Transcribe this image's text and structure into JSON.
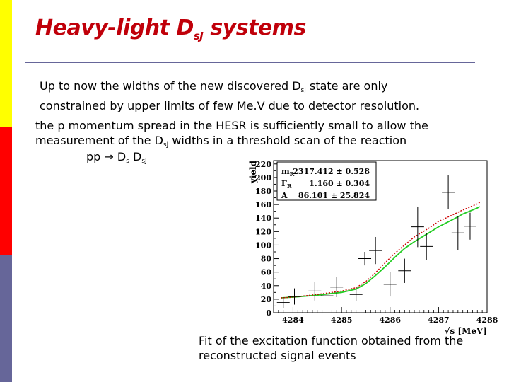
{
  "colors": {
    "title": "#c0000a",
    "sidebar_top": "#ffff00",
    "sidebar_middle": "#ff0000",
    "sidebar_bottom": "#666699",
    "divider": "#666699",
    "fit_green": "#22cc22",
    "fit_red_dotted": "#cc0000",
    "data_points": "#000000"
  },
  "slide": {
    "title": {
      "main": "Heavy-light D",
      "sub": "sJ",
      "rest": " systems"
    },
    "para1": {
      "a": "Up to now the widths of the new discovered D",
      "sub": "sJ",
      "b": " state are only",
      "line2": "constrained by upper limits of few Me.V due to detector resolution."
    },
    "para2": {
      "line1": "the p momentum spread in the HESR is sufficiently small to allow the",
      "a": "measurement of the D",
      "sub": "sJ",
      "b": " widths in a threshold scan of the reaction"
    },
    "reaction": {
      "a": "pp → D",
      "sub1": "s",
      "b": " D",
      "sub2": "sJ"
    },
    "caption": {
      "line1": "Fit of the excitation function obtained from the",
      "line2": "reconstructed signal events"
    }
  },
  "chart_data": {
    "type": "scatter",
    "xlabel": "√s [MeV]",
    "ylabel": "yield",
    "xlim": [
      4283.6,
      4288
    ],
    "ylim": [
      0,
      225
    ],
    "xticks": [
      "4284",
      "4285",
      "4286",
      "4287",
      "4288"
    ],
    "yticks": [
      "0",
      "20",
      "40",
      "60",
      "80",
      "100",
      "120",
      "140",
      "160",
      "180",
      "200",
      "220"
    ],
    "legend_box": {
      "position": "top-left",
      "rows": [
        {
          "param": "m",
          "sub": "R",
          "value": "2317.412 ± 0.528"
        },
        {
          "param": "Γ",
          "sub": "R",
          "value": "1.160 ± 0.304"
        },
        {
          "param": "A",
          "sub": "",
          "value": "86.101 ± 25.824"
        }
      ]
    },
    "points": [
      {
        "x": 4283.8,
        "y": 15,
        "err": 8
      },
      {
        "x": 4284.03,
        "y": 24,
        "err": 12
      },
      {
        "x": 4284.45,
        "y": 32,
        "err": 14
      },
      {
        "x": 4284.7,
        "y": 25,
        "err": 10
      },
      {
        "x": 4284.9,
        "y": 38,
        "err": 15
      },
      {
        "x": 4285.3,
        "y": 27,
        "err": 10
      },
      {
        "x": 4285.48,
        "y": 80,
        "err": 10
      },
      {
        "x": 4285.7,
        "y": 92,
        "err": 20
      },
      {
        "x": 4286.0,
        "y": 42,
        "err": 18
      },
      {
        "x": 4286.3,
        "y": 62,
        "err": 18
      },
      {
        "x": 4286.57,
        "y": 127,
        "err": 30
      },
      {
        "x": 4286.75,
        "y": 98,
        "err": 20
      },
      {
        "x": 4287.2,
        "y": 178,
        "err": 25
      },
      {
        "x": 4287.4,
        "y": 118,
        "err": 25
      },
      {
        "x": 4287.65,
        "y": 128,
        "err": 20
      }
    ],
    "series": [
      {
        "style": "solid-green",
        "x": [
          4283.75,
          4284.0,
          4284.5,
          4285.0,
          4285.3,
          4285.5,
          4285.7,
          4285.9,
          4286.1,
          4286.3,
          4286.5,
          4286.8,
          4287.0,
          4287.3,
          4287.5,
          4287.8,
          4287.85
        ],
        "y": [
          22,
          23,
          26,
          30,
          35,
          43,
          55,
          68,
          82,
          95,
          105,
          118,
          127,
          138,
          146,
          155,
          157
        ]
      },
      {
        "style": "dotted-red",
        "x": [
          4283.75,
          4284.0,
          4284.5,
          4285.0,
          4285.3,
          4285.5,
          4285.7,
          4285.9,
          4286.1,
          4286.3,
          4286.5,
          4286.8,
          4287.0,
          4287.3,
          4287.5,
          4287.8,
          4287.85
        ],
        "y": [
          22,
          23,
          27,
          32,
          37,
          46,
          59,
          74,
          88,
          100,
          112,
          125,
          135,
          145,
          152,
          161,
          163
        ]
      }
    ]
  }
}
